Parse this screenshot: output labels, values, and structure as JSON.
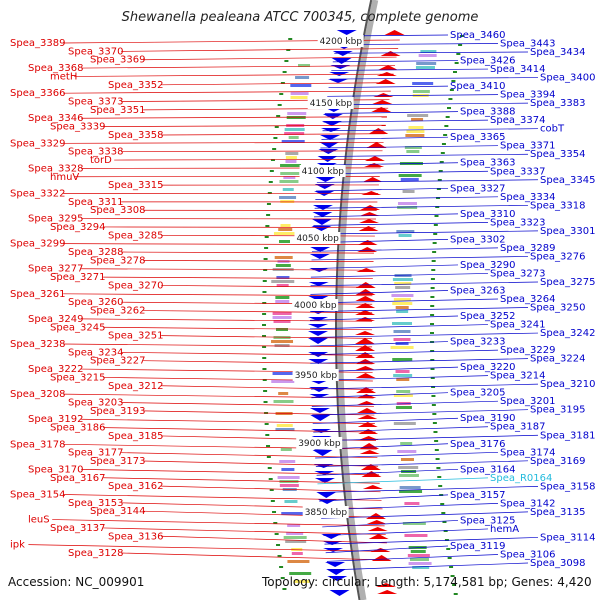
{
  "title": "Shewanella pealeana ATCC 700345, complete genome",
  "footer": {
    "accession": "Accession: NC_009901",
    "summary": "Topology: circular; Length: 5,174,581 bp; Genes: 4,420"
  },
  "colors": {
    "left_labels": "#dd0000",
    "right_labels": "#0000cc",
    "highlight_label": "#22bbdd",
    "forward_genes": "#ee0000",
    "reverse_genes": "#0000ee",
    "backbone": "#888888",
    "tick": "#228822"
  },
  "kbp_ticks": [
    "4200 kbp",
    "4150 kbp",
    "4100 kbp",
    "4050 kbp",
    "4000 kbp",
    "3950 kbp",
    "3900 kbp",
    "3850 kbp"
  ],
  "left_labels": [
    "Spea_3389",
    "Spea_3370",
    "Spea_3369",
    "Spea_3368",
    "metH",
    "Spea_3352",
    "Spea_3366",
    "Spea_3373",
    "Spea_3351",
    "Spea_3346",
    "Spea_3339",
    "Spea_3358",
    "Spea_3329",
    "Spea_3338",
    "torD",
    "Spea_3328",
    "hmuV",
    "Spea_3315",
    "Spea_3322",
    "Spea_3311",
    "Spea_3308",
    "Spea_3295",
    "Spea_3294",
    "Spea_3285",
    "Spea_3299",
    "Spea_3288",
    "Spea_3278",
    "Spea_3277",
    "Spea_3271",
    "Spea_3270",
    "Spea_3261",
    "Spea_3260",
    "Spea_3262",
    "Spea_3249",
    "Spea_3245",
    "Spea_3251",
    "Spea_3238",
    "Spea_3234",
    "Spea_3227",
    "Spea_3222",
    "Spea_3215",
    "Spea_3212",
    "Spea_3208",
    "Spea_3203",
    "Spea_3193",
    "Spea_3192",
    "Spea_3186",
    "Spea_3185",
    "Spea_3178",
    "Spea_3177",
    "Spea_3173",
    "Spea_3170",
    "Spea_3167",
    "Spea_3162",
    "Spea_3154",
    "Spea_3153",
    "Spea_3144",
    "leuS",
    "Spea_3137",
    "Spea_3136",
    "ipk",
    "Spea_3128"
  ],
  "right_labels": [
    "Spea_3460",
    "Spea_3443",
    "Spea_3434",
    "Spea_3426",
    "Spea_3414",
    "Spea_3400",
    "Spea_3410",
    "Spea_3394",
    "Spea_3383",
    "Spea_3388",
    "Spea_3374",
    "cobT",
    "Spea_3365",
    "Spea_3371",
    "Spea_3354",
    "Spea_3363",
    "Spea_3337",
    "Spea_3345",
    "Spea_3327",
    "Spea_3334",
    "Spea_3318",
    "Spea_3310",
    "Spea_3323",
    "Spea_3301",
    "Spea_3302",
    "Spea_3289",
    "Spea_3276",
    "Spea_3290",
    "Spea_3273",
    "Spea_3275",
    "Spea_3263",
    "Spea_3264",
    "Spea_3250",
    "Spea_3252",
    "Spea_3241",
    "Spea_3242",
    "Spea_3233",
    "Spea_3229",
    "Spea_3224",
    "Spea_3220",
    "Spea_3214",
    "Spea_3210",
    "Spea_3205",
    "Spea_3201",
    "Spea_3195",
    "Spea_3190",
    "Spea_3187",
    "Spea_3181",
    "Spea_3176",
    "Spea_3174",
    "Spea_3169",
    "Spea_3164",
    "Spea_R0164",
    "Spea_3158",
    "Spea_3157",
    "Spea_3142",
    "Spea_3135",
    "Spea_3125",
    "hemA",
    "Spea_3114",
    "Spea_3119",
    "Spea_3106",
    "Spea_3098"
  ]
}
